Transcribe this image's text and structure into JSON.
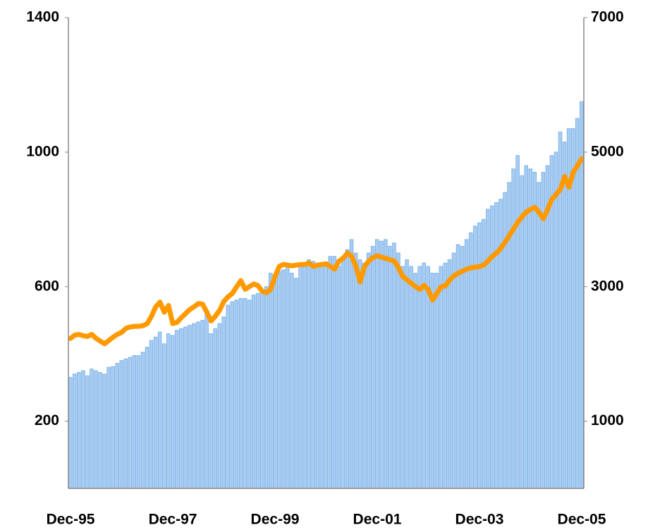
{
  "chart_data": {
    "type": "bar",
    "categories": [
      "Dec-95",
      null,
      null,
      null,
      null,
      null,
      null,
      null,
      null,
      null,
      null,
      null,
      null,
      null,
      null,
      null,
      null,
      null,
      null,
      null,
      null,
      null,
      null,
      null,
      "Dec-97",
      null,
      null,
      null,
      null,
      null,
      null,
      null,
      null,
      null,
      null,
      null,
      null,
      null,
      null,
      null,
      null,
      null,
      null,
      null,
      null,
      null,
      null,
      null,
      "Dec-99",
      null,
      null,
      null,
      null,
      null,
      null,
      null,
      null,
      null,
      null,
      null,
      null,
      null,
      null,
      null,
      null,
      null,
      null,
      null,
      null,
      null,
      null,
      null,
      "Dec-01",
      null,
      null,
      null,
      null,
      null,
      null,
      null,
      null,
      null,
      null,
      null,
      null,
      null,
      null,
      null,
      null,
      null,
      null,
      null,
      null,
      null,
      null,
      null,
      "Dec-03",
      null,
      null,
      null,
      null,
      null,
      null,
      null,
      null,
      null,
      null,
      null,
      null,
      null,
      null,
      null,
      null,
      null,
      null,
      null,
      null,
      null,
      null,
      null,
      "Dec-05"
    ],
    "series": [
      {
        "type": "bar",
        "color": "#a9cdf2",
        "stroke": "#7fb3e8",
        "axis": "y",
        "values": [
          330,
          340,
          345,
          350,
          335,
          355,
          350,
          345,
          340,
          360,
          362,
          372,
          380,
          385,
          390,
          395,
          395,
          405,
          420,
          440,
          450,
          465,
          430,
          460,
          455,
          470,
          475,
          480,
          485,
          490,
          495,
          500,
          520,
          460,
          475,
          490,
          510,
          545,
          555,
          560,
          565,
          565,
          560,
          575,
          580,
          585,
          600,
          640,
          635,
          645,
          650,
          660,
          640,
          625,
          670,
          660,
          680,
          675,
          670,
          670,
          670,
          690,
          690,
          660,
          690,
          710,
          740,
          700,
          680,
          670,
          700,
          720,
          740,
          735,
          740,
          720,
          730,
          700,
          660,
          680,
          660,
          640,
          660,
          670,
          660,
          640,
          640,
          660,
          670,
          680,
          700,
          725,
          720,
          740,
          760,
          780,
          790,
          800,
          830,
          840,
          850,
          860,
          880,
          910,
          950,
          990,
          930,
          960,
          950,
          940,
          910,
          940,
          960,
          990,
          1000,
          1060,
          1030,
          1070,
          1070,
          1100,
          1150
        ]
      },
      {
        "type": "line",
        "color": "#ff9900",
        "axis": "y2",
        "values": [
          2230,
          2280,
          2290,
          2270,
          2260,
          2290,
          2230,
          2190,
          2150,
          2200,
          2250,
          2290,
          2320,
          2380,
          2400,
          2410,
          2410,
          2420,
          2450,
          2560,
          2700,
          2770,
          2620,
          2720,
          2450,
          2470,
          2540,
          2600,
          2660,
          2700,
          2750,
          2740,
          2620,
          2490,
          2560,
          2650,
          2780,
          2850,
          2900,
          3000,
          3090,
          2960,
          3000,
          3040,
          3015,
          2930,
          2910,
          2960,
          3150,
          3300,
          3330,
          3320,
          3310,
          3320,
          3330,
          3330,
          3350,
          3300,
          3320,
          3330,
          3340,
          3300,
          3260,
          3380,
          3420,
          3500,
          3450,
          3300,
          3070,
          3300,
          3380,
          3430,
          3460,
          3440,
          3420,
          3400,
          3380,
          3280,
          3150,
          3100,
          3050,
          3000,
          2960,
          3020,
          2950,
          2800,
          2900,
          3000,
          3010,
          3100,
          3160,
          3200,
          3230,
          3260,
          3280,
          3290,
          3300,
          3320,
          3380,
          3450,
          3500,
          3570,
          3660,
          3760,
          3860,
          3960,
          4040,
          4110,
          4150,
          4180,
          4100,
          4010,
          4150,
          4300,
          4370,
          4450,
          4640,
          4480,
          4700,
          4800,
          4900
        ]
      }
    ],
    "ylim": [
      0,
      1400
    ],
    "yticks": [
      200,
      600,
      1000,
      1400
    ],
    "y2lim": [
      0,
      7000
    ],
    "y2ticks": [
      1000,
      3000,
      5000,
      7000
    ],
    "grid": false
  }
}
